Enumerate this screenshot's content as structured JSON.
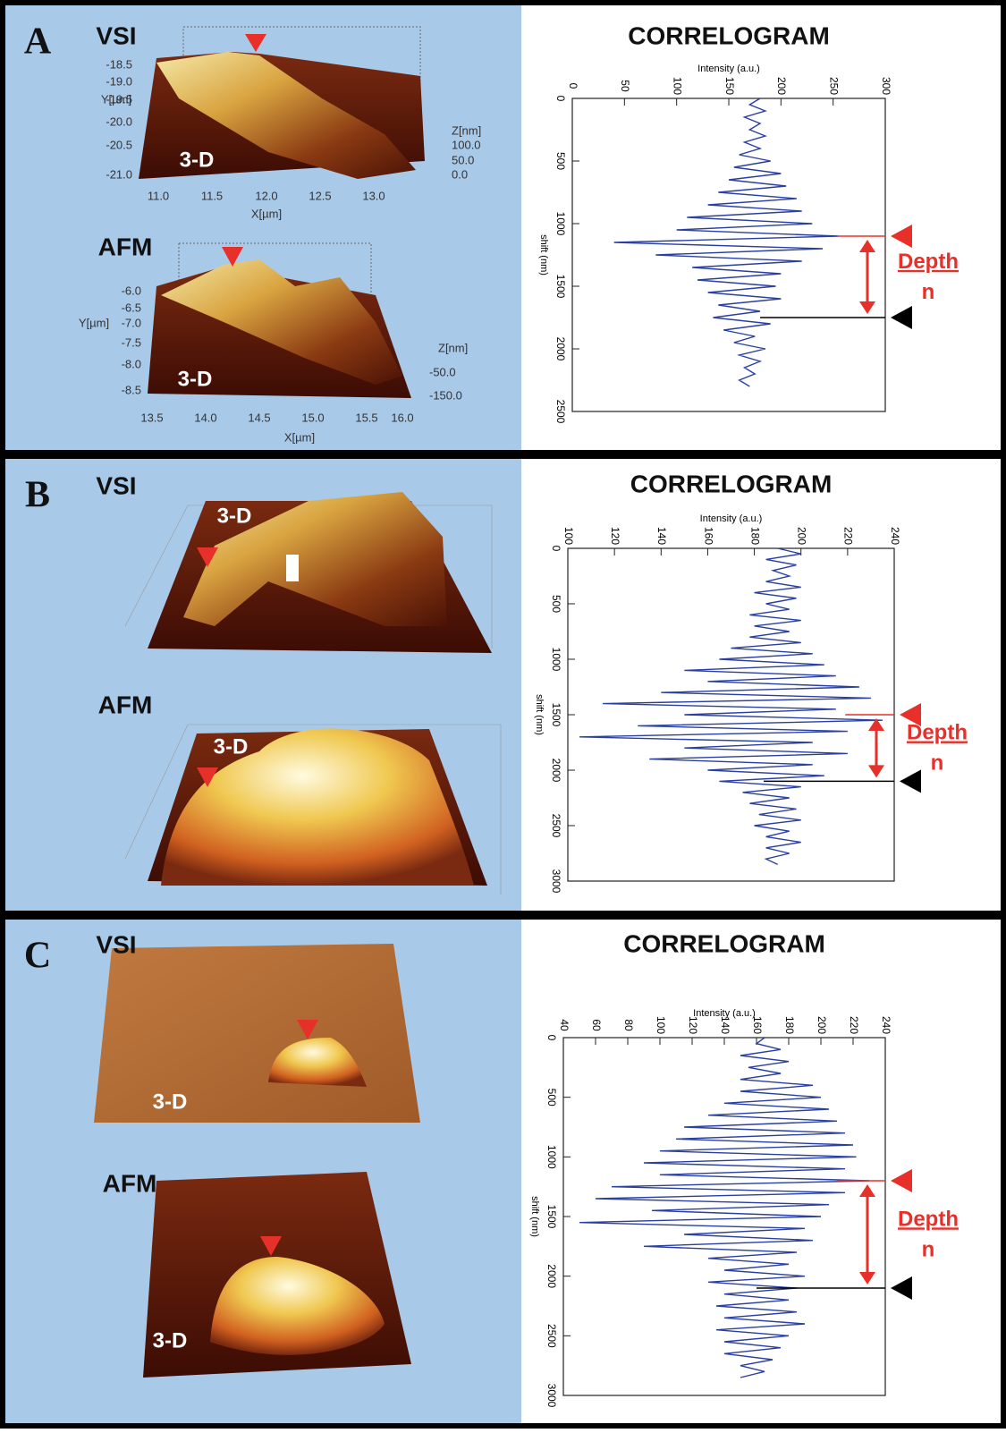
{
  "panels": [
    {
      "letter": "A",
      "vsi": "VSI",
      "afm": "AFM",
      "vsi_3d": "3-D",
      "afm_3d": "3-D",
      "vsi_axes": {
        "y_label": "Y[µm]",
        "y_ticks": [
          "-18.5",
          "-19.0",
          "-19.5",
          "-20.0",
          "-20.5",
          "-21.0"
        ],
        "x_label": "X[µm]",
        "x_ticks": [
          "11.0",
          "11.5",
          "12.0",
          "12.5",
          "13.0"
        ],
        "z_label": "Z[nm]",
        "z_ticks": [
          "100.0",
          "50.0",
          "0.0"
        ]
      },
      "afm_axes": {
        "y_label": "Y[µm]",
        "y_ticks": [
          "-6.0",
          "-6.5",
          "-7.0",
          "-7.5",
          "-8.0",
          "-8.5"
        ],
        "x_label": "X[µm]",
        "x_ticks": [
          "13.5",
          "14.0",
          "14.5",
          "15.0",
          "15.5",
          "16.0"
        ],
        "z_label": "Z[nm]",
        "z_ticks": [
          "-50.0",
          "-150.0"
        ]
      }
    },
    {
      "letter": "B",
      "vsi": "VSI",
      "afm": "AFM",
      "vsi_3d": "3-D",
      "afm_3d": "3-D"
    },
    {
      "letter": "C",
      "vsi": "VSI",
      "afm": "AFM",
      "vsi_3d": "3-D",
      "afm_3d": "3-D"
    }
  ],
  "chart_data": [
    {
      "type": "line",
      "title": "CORRELOGRAM",
      "x_label": "shift (nm)",
      "y_label": "Intensity (a.u.)",
      "x": [
        0,
        50,
        100,
        150,
        200,
        250,
        300,
        350,
        400,
        450,
        500,
        550,
        600,
        650,
        700,
        750,
        800,
        850,
        900,
        950,
        1000,
        1050,
        1100,
        1150,
        1200,
        1250,
        1300,
        1350,
        1400,
        1450,
        1500,
        1550,
        1600,
        1650,
        1700,
        1750,
        1800,
        1850,
        1900,
        1950,
        2000,
        2050,
        2100,
        2150,
        2200,
        2250,
        2300
      ],
      "series": [
        {
          "color": "#2a3fa0",
          "values": [
            180,
            170,
            185,
            165,
            180,
            170,
            185,
            165,
            180,
            160,
            190,
            155,
            200,
            150,
            205,
            140,
            215,
            130,
            220,
            110,
            230,
            100,
            255,
            40,
            240,
            80,
            220,
            115,
            200,
            120,
            195,
            130,
            200,
            140,
            180,
            135,
            190,
            145,
            175,
            155,
            185,
            160,
            180,
            165,
            175,
            160,
            170
          ]
        }
      ],
      "xlim": [
        0,
        2500
      ],
      "xticks": [
        0,
        500,
        1000,
        1500,
        2000,
        2500
      ],
      "ylim": [
        0,
        300
      ],
      "yticks": [
        0,
        50,
        100,
        150,
        200,
        250,
        300
      ],
      "markers": [
        1100,
        1750
      ],
      "annotation": "Depth",
      "annotation_sub": "n"
    },
    {
      "type": "line",
      "title": "CORRELOGRAM",
      "x_label": "shift (nm)",
      "y_label": "Intensity (a.u.)",
      "x": [
        0,
        50,
        100,
        150,
        200,
        250,
        300,
        350,
        400,
        450,
        500,
        550,
        600,
        650,
        700,
        750,
        800,
        850,
        900,
        950,
        1000,
        1050,
        1100,
        1150,
        1200,
        1250,
        1300,
        1350,
        1400,
        1450,
        1500,
        1550,
        1600,
        1650,
        1700,
        1750,
        1800,
        1850,
        1900,
        1950,
        2000,
        2050,
        2100,
        2150,
        2200,
        2250,
        2300,
        2350,
        2400,
        2450,
        2500,
        2550,
        2600,
        2650,
        2700,
        2750,
        2800,
        2850
      ],
      "series": [
        {
          "color": "#2a3fa0",
          "values": [
            190,
            200,
            185,
            198,
            188,
            195,
            185,
            200,
            180,
            198,
            185,
            195,
            178,
            200,
            180,
            195,
            178,
            200,
            170,
            205,
            165,
            210,
            150,
            215,
            160,
            225,
            140,
            230,
            115,
            215,
            150,
            235,
            130,
            220,
            105,
            205,
            150,
            220,
            135,
            205,
            160,
            210,
            165,
            200,
            175,
            195,
            178,
            198,
            182,
            200,
            180,
            195,
            185,
            200,
            185,
            195,
            185,
            190
          ]
        }
      ],
      "xlim": [
        0,
        3000
      ],
      "xticks": [
        0,
        500,
        1000,
        1500,
        2000,
        2500,
        3000
      ],
      "ylim": [
        100,
        240
      ],
      "yticks": [
        100,
        120,
        140,
        160,
        180,
        200,
        220,
        240
      ],
      "markers": [
        1500,
        2100
      ],
      "annotation": "Depth",
      "annotation_sub": "n"
    },
    {
      "type": "line",
      "title": "CORRELOGRAM",
      "x_label": "shift (nm)",
      "y_label": "Intensity (a.u.)",
      "x": [
        0,
        50,
        100,
        150,
        200,
        250,
        300,
        350,
        400,
        450,
        500,
        550,
        600,
        650,
        700,
        750,
        800,
        850,
        900,
        950,
        1000,
        1050,
        1100,
        1150,
        1200,
        1250,
        1300,
        1350,
        1400,
        1450,
        1500,
        1550,
        1600,
        1650,
        1700,
        1750,
        1800,
        1850,
        1900,
        1950,
        2000,
        2050,
        2100,
        2150,
        2200,
        2250,
        2300,
        2350,
        2400,
        2450,
        2500,
        2550,
        2600,
        2650,
        2700,
        2750,
        2800,
        2850
      ],
      "series": [
        {
          "color": "#2a3fa0",
          "values": [
            165,
            160,
            175,
            150,
            180,
            155,
            175,
            150,
            195,
            150,
            200,
            140,
            205,
            130,
            210,
            115,
            215,
            110,
            220,
            100,
            222,
            90,
            215,
            100,
            230,
            70,
            215,
            60,
            205,
            95,
            200,
            50,
            190,
            115,
            195,
            90,
            185,
            130,
            180,
            140,
            190,
            130,
            185,
            140,
            180,
            135,
            185,
            140,
            190,
            135,
            180,
            140,
            175,
            140,
            170,
            150,
            165,
            150
          ]
        }
      ],
      "xlim": [
        0,
        3000
      ],
      "xticks": [
        0,
        500,
        1000,
        1500,
        2000,
        2500,
        3000
      ],
      "ylim": [
        40,
        240
      ],
      "yticks": [
        40,
        60,
        80,
        100,
        120,
        140,
        160,
        180,
        200,
        220,
        240
      ],
      "markers": [
        1200,
        2100
      ],
      "annotation": "Depth",
      "annotation_sub": "n"
    }
  ]
}
